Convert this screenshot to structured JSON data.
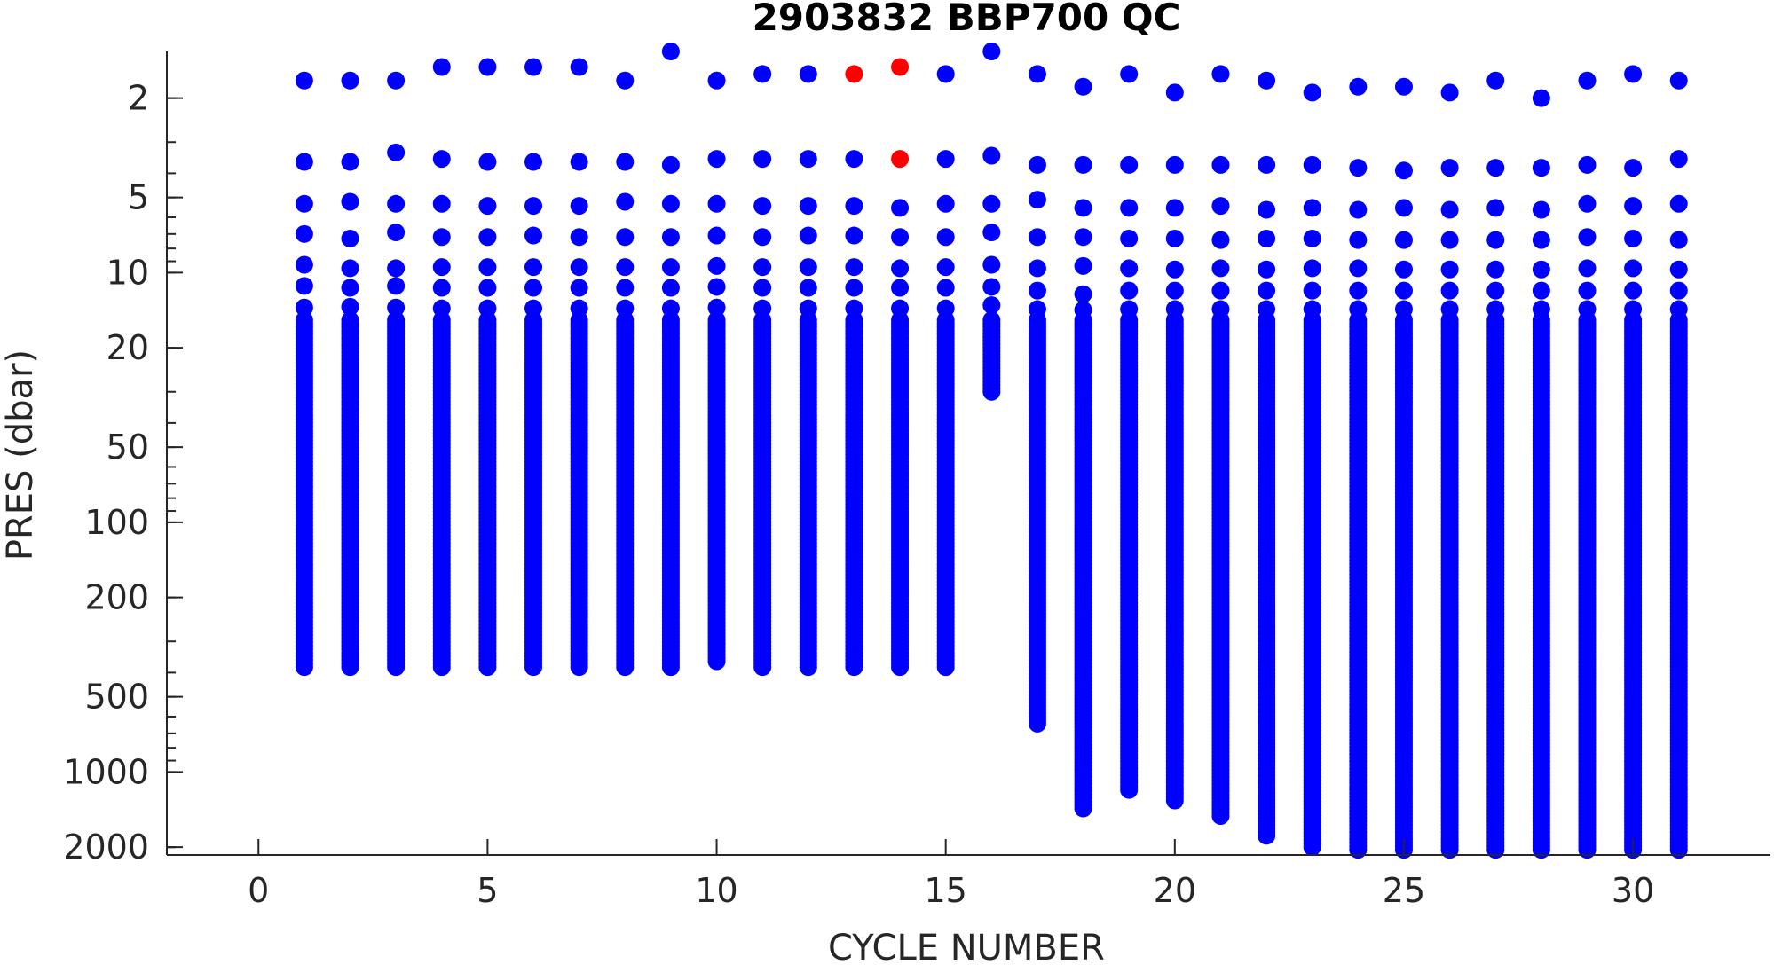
{
  "chart_data": {
    "type": "scatter",
    "title": "2903832 BBP700 QC",
    "xlabel": "CYCLE NUMBER",
    "ylabel": "PRES (dbar)",
    "xlim": [
      -2,
      33
    ],
    "ylim": [
      2150,
      1.3
    ],
    "yscale": "log",
    "yreversed": true,
    "grid": false,
    "xticks": [
      0,
      5,
      10,
      15,
      20,
      25,
      30
    ],
    "yticks": [
      2,
      5,
      10,
      20,
      50,
      100,
      200,
      500,
      1000,
      2000
    ],
    "colors": {
      "good": "#0000ff",
      "flagged": "#ff0000"
    },
    "cycles": [
      {
        "cycle": 1,
        "first_points": [
          1.7,
          3.6,
          5.3,
          7.0,
          9.3,
          11.3,
          13.8
        ],
        "deep_start": 15.5,
        "deep_end": 380
      },
      {
        "cycle": 2,
        "first_points": [
          1.7,
          3.6,
          5.2,
          7.3,
          9.6,
          11.5,
          13.7
        ],
        "deep_start": 15.5,
        "deep_end": 380
      },
      {
        "cycle": 3,
        "first_points": [
          1.7,
          3.3,
          5.3,
          6.9,
          9.6,
          11.3,
          13.8
        ],
        "deep_start": 15.5,
        "deep_end": 380
      },
      {
        "cycle": 4,
        "first_points": [
          1.5,
          3.5,
          5.3,
          7.2,
          9.5,
          11.5,
          13.9
        ],
        "deep_start": 15.5,
        "deep_end": 380
      },
      {
        "cycle": 5,
        "first_points": [
          1.5,
          3.6,
          5.4,
          7.2,
          9.5,
          11.5,
          13.9
        ],
        "deep_start": 15.5,
        "deep_end": 380
      },
      {
        "cycle": 6,
        "first_points": [
          1.5,
          3.6,
          5.4,
          7.1,
          9.5,
          11.5,
          13.9
        ],
        "deep_start": 15.5,
        "deep_end": 380
      },
      {
        "cycle": 7,
        "first_points": [
          1.5,
          3.6,
          5.4,
          7.2,
          9.5,
          11.5,
          13.9
        ],
        "deep_start": 15.5,
        "deep_end": 380
      },
      {
        "cycle": 8,
        "first_points": [
          1.7,
          3.6,
          5.2,
          7.2,
          9.5,
          11.5,
          13.9
        ],
        "deep_start": 15.5,
        "deep_end": 380
      },
      {
        "cycle": 9,
        "first_points": [
          1.3,
          3.7,
          5.3,
          7.2,
          9.5,
          11.5,
          13.9
        ],
        "deep_start": 15.5,
        "deep_end": 380
      },
      {
        "cycle": 10,
        "first_points": [
          1.7,
          3.5,
          5.3,
          7.1,
          9.4,
          11.4,
          13.8
        ],
        "deep_start": 15.5,
        "deep_end": 360
      },
      {
        "cycle": 11,
        "first_points": [
          1.6,
          3.5,
          5.4,
          7.2,
          9.5,
          11.5,
          13.9
        ],
        "deep_start": 15.5,
        "deep_end": 380
      },
      {
        "cycle": 12,
        "first_points": [
          1.6,
          3.5,
          5.4,
          7.1,
          9.5,
          11.5,
          13.9
        ],
        "deep_start": 15.5,
        "deep_end": 380
      },
      {
        "cycle": 13,
        "first_points": [
          1.6,
          3.5,
          5.4,
          7.1,
          9.5,
          11.5,
          13.9
        ],
        "deep_start": 15.5,
        "deep_end": 380,
        "flagged": [
          1.6
        ]
      },
      {
        "cycle": 14,
        "first_points": [
          1.5,
          3.5,
          5.5,
          7.2,
          9.6,
          11.5,
          13.9
        ],
        "deep_start": 15.5,
        "deep_end": 380,
        "flagged": [
          1.5,
          3.5
        ]
      },
      {
        "cycle": 15,
        "first_points": [
          1.6,
          3.5,
          5.3,
          7.2,
          9.5,
          11.5,
          13.9
        ],
        "deep_start": 15.5,
        "deep_end": 380
      },
      {
        "cycle": 16,
        "first_points": [
          1.3,
          3.4,
          5.3,
          6.9,
          9.3,
          11.4,
          13.5
        ],
        "deep_start": 15.5,
        "deep_end": 30
      },
      {
        "cycle": 17,
        "first_points": [
          1.6,
          3.7,
          5.1,
          7.2,
          9.6,
          11.8,
          14.0
        ],
        "deep_start": 15.5,
        "deep_end": 640
      },
      {
        "cycle": 18,
        "first_points": [
          1.8,
          3.7,
          5.5,
          7.2,
          9.4,
          12.2,
          14.1
        ],
        "deep_start": 15.5,
        "deep_end": 1400
      },
      {
        "cycle": 19,
        "first_points": [
          1.6,
          3.7,
          5.5,
          7.3,
          9.6,
          11.8,
          14.0
        ],
        "deep_start": 15.5,
        "deep_end": 1180
      },
      {
        "cycle": 20,
        "first_points": [
          1.9,
          3.7,
          5.5,
          7.3,
          9.7,
          11.8,
          14.0
        ],
        "deep_start": 15.5,
        "deep_end": 1300
      },
      {
        "cycle": 21,
        "first_points": [
          1.6,
          3.7,
          5.4,
          7.4,
          9.6,
          11.8,
          14.0
        ],
        "deep_start": 15.5,
        "deep_end": 1500
      },
      {
        "cycle": 22,
        "first_points": [
          1.7,
          3.7,
          5.6,
          7.3,
          9.7,
          11.8,
          14.0
        ],
        "deep_start": 15.5,
        "deep_end": 1800
      },
      {
        "cycle": 23,
        "first_points": [
          1.9,
          3.7,
          5.5,
          7.3,
          9.6,
          11.8,
          14.0
        ],
        "deep_start": 15.5,
        "deep_end": 2000
      },
      {
        "cycle": 24,
        "first_points": [
          1.8,
          3.8,
          5.6,
          7.4,
          9.6,
          11.8,
          14.0
        ],
        "deep_start": 15.5,
        "deep_end": 2050
      },
      {
        "cycle": 25,
        "first_points": [
          1.8,
          3.9,
          5.5,
          7.4,
          9.7,
          11.8,
          14.0
        ],
        "deep_start": 15.5,
        "deep_end": 2050
      },
      {
        "cycle": 26,
        "first_points": [
          1.9,
          3.8,
          5.6,
          7.4,
          9.7,
          11.8,
          14.0
        ],
        "deep_start": 15.5,
        "deep_end": 2050
      },
      {
        "cycle": 27,
        "first_points": [
          1.7,
          3.8,
          5.5,
          7.4,
          9.7,
          11.8,
          14.0
        ],
        "deep_start": 15.5,
        "deep_end": 2050
      },
      {
        "cycle": 28,
        "first_points": [
          2.0,
          3.8,
          5.6,
          7.4,
          9.7,
          11.8,
          14.0
        ],
        "deep_start": 15.5,
        "deep_end": 2050
      },
      {
        "cycle": 29,
        "first_points": [
          1.7,
          3.7,
          5.3,
          7.2,
          9.6,
          11.8,
          14.0
        ],
        "deep_start": 15.5,
        "deep_end": 2050
      },
      {
        "cycle": 30,
        "first_points": [
          1.6,
          3.8,
          5.4,
          7.3,
          9.6,
          11.8,
          14.0
        ],
        "deep_start": 15.5,
        "deep_end": 2050
      },
      {
        "cycle": 31,
        "first_points": [
          1.7,
          3.5,
          5.3,
          7.4,
          9.7,
          11.8,
          14.0
        ],
        "deep_start": 15.5,
        "deep_end": 2050
      }
    ]
  }
}
